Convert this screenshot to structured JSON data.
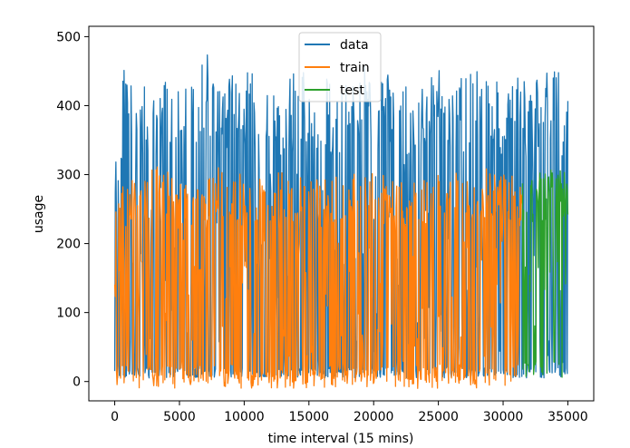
{
  "chart_data": {
    "type": "line",
    "xlabel": "time interval (15 mins)",
    "ylabel": "usage",
    "xlim": [
      -2000,
      37000
    ],
    "ylim": [
      -28,
      515
    ],
    "xticks": [
      0,
      5000,
      10000,
      15000,
      20000,
      25000,
      30000,
      35000
    ],
    "xtick_labels": [
      "0",
      "5000",
      "10000",
      "15000",
      "20000",
      "25000",
      "30000",
      "35000"
    ],
    "yticks": [
      0,
      100,
      200,
      300,
      400,
      500
    ],
    "ytick_labels": [
      "0",
      "100",
      "200",
      "300",
      "400",
      "500"
    ],
    "legend": {
      "position": "upper center"
    },
    "grid": false,
    "series": [
      {
        "name": "data",
        "color": "#1f77b4",
        "x_range": [
          0,
          35000
        ],
        "baseline_range": [
          5,
          20
        ],
        "peak_envelope": [
          [
            0,
            320
          ],
          [
            900,
            490
          ],
          [
            1500,
            400
          ],
          [
            2200,
            435
          ],
          [
            3000,
            420
          ],
          [
            4000,
            440
          ],
          [
            5000,
            430
          ],
          [
            6000,
            445
          ],
          [
            7200,
            475
          ],
          [
            8000,
            430
          ],
          [
            9000,
            450
          ],
          [
            10000,
            455
          ],
          [
            11000,
            445
          ],
          [
            12000,
            440
          ],
          [
            13000,
            415
          ],
          [
            14000,
            460
          ],
          [
            15000,
            445
          ],
          [
            16000,
            450
          ],
          [
            17000,
            420
          ],
          [
            18000,
            455
          ],
          [
            19000,
            460
          ],
          [
            20000,
            450
          ],
          [
            21000,
            445
          ],
          [
            22000,
            460
          ],
          [
            23000,
            420
          ],
          [
            24000,
            450
          ],
          [
            25000,
            465
          ],
          [
            26000,
            425
          ],
          [
            27000,
            445
          ],
          [
            28000,
            460
          ],
          [
            29000,
            440
          ],
          [
            30000,
            430
          ],
          [
            31000,
            445
          ],
          [
            32000,
            430
          ],
          [
            33000,
            450
          ],
          [
            34000,
            468
          ],
          [
            35000,
            410
          ]
        ]
      },
      {
        "name": "train",
        "color": "#ff7f0e",
        "x_range": [
          0,
          31500
        ],
        "baseline_range": [
          -10,
          25
        ],
        "peak_envelope": [
          [
            0,
            250
          ],
          [
            1000,
            310
          ],
          [
            2000,
            290
          ],
          [
            3000,
            315
          ],
          [
            5000,
            295
          ],
          [
            7000,
            305
          ],
          [
            8000,
            310
          ],
          [
            10000,
            300
          ],
          [
            12000,
            295
          ],
          [
            13000,
            310
          ],
          [
            14000,
            300
          ],
          [
            16000,
            295
          ],
          [
            18000,
            300
          ],
          [
            20000,
            305
          ],
          [
            22000,
            295
          ],
          [
            24000,
            300
          ],
          [
            26000,
            305
          ],
          [
            28000,
            310
          ],
          [
            30000,
            305
          ],
          [
            31500,
            290
          ]
        ]
      },
      {
        "name": "test",
        "color": "#2ca02c",
        "x_range": [
          31500,
          35000
        ],
        "baseline_range": [
          5,
          30
        ],
        "peak_envelope": [
          [
            31500,
            305
          ],
          [
            32500,
            310
          ],
          [
            33500,
            300
          ],
          [
            34000,
            320
          ],
          [
            35000,
            300
          ]
        ]
      }
    ]
  }
}
